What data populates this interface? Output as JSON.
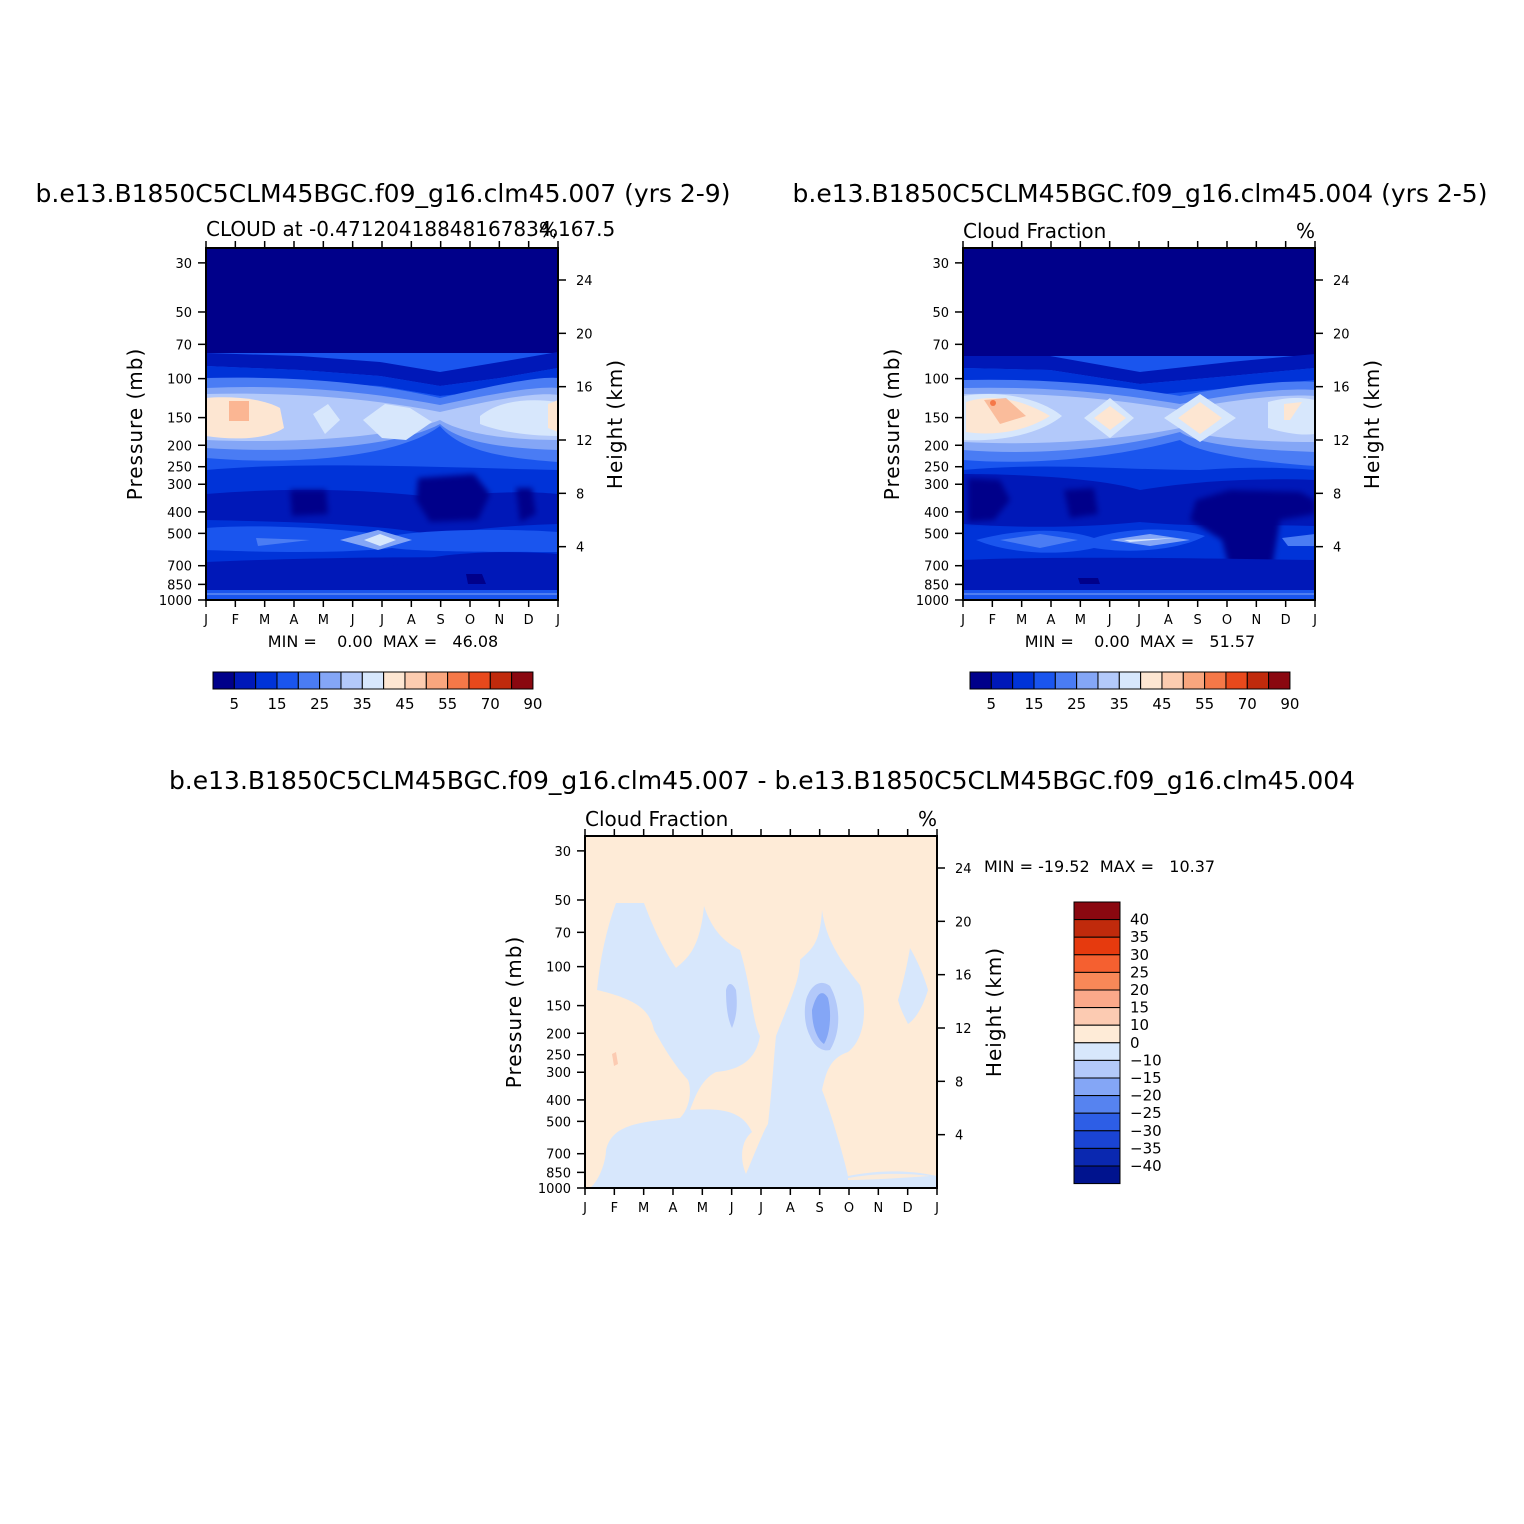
{
  "chart_data": [
    {
      "type": "heatmap",
      "title": "b.e13.B1850C5CLM45BGC.f09_g16.clm45.007 (yrs 2-9)",
      "subtitle_left": "CLOUD at -0.47120418848167834,167.5",
      "units": "%",
      "ylabel": "Pressure (mb)",
      "ylabel_right": "Height (km)",
      "x_ticks": [
        "J",
        "F",
        "M",
        "A",
        "M",
        "J",
        "J",
        "A",
        "S",
        "O",
        "N",
        "D",
        "J"
      ],
      "y_ticks": [
        "30",
        "50",
        "70",
        "100",
        "150",
        "200",
        "250",
        "300",
        "400",
        "500",
        "700",
        "850",
        "1000"
      ],
      "y_ticks_right": [
        "24",
        "20",
        "16",
        "12",
        "8",
        "4"
      ],
      "stats": "MIN =    0.00  MAX =   46.08",
      "colorbar_labels": [
        "5",
        "15",
        "25",
        "35",
        "45",
        "55",
        "70",
        "90"
      ]
    },
    {
      "type": "heatmap",
      "title": "b.e13.B1850C5CLM45BGC.f09_g16.clm45.004 (yrs 2-5)",
      "subtitle_left": "Cloud Fraction",
      "units": "%",
      "ylabel": "Pressure (mb)",
      "ylabel_right": "Height (km)",
      "x_ticks": [
        "J",
        "F",
        "M",
        "A",
        "M",
        "J",
        "J",
        "A",
        "S",
        "O",
        "N",
        "D",
        "J"
      ],
      "y_ticks": [
        "30",
        "50",
        "70",
        "100",
        "150",
        "200",
        "250",
        "300",
        "400",
        "500",
        "700",
        "850",
        "1000"
      ],
      "y_ticks_right": [
        "24",
        "20",
        "16",
        "12",
        "8",
        "4"
      ],
      "stats": "MIN =    0.00  MAX =   51.57",
      "colorbar_labels": [
        "5",
        "15",
        "25",
        "35",
        "45",
        "55",
        "70",
        "90"
      ]
    },
    {
      "type": "heatmap",
      "title": "b.e13.B1850C5CLM45BGC.f09_g16.clm45.007 - b.e13.B1850C5CLM45BGC.f09_g16.clm45.004",
      "subtitle_left": "Cloud Fraction",
      "units": "%",
      "ylabel": "Pressure (mb)",
      "ylabel_right": "Height (km)",
      "x_ticks": [
        "J",
        "F",
        "M",
        "A",
        "M",
        "J",
        "J",
        "A",
        "S",
        "O",
        "N",
        "D",
        "J"
      ],
      "y_ticks": [
        "30",
        "50",
        "70",
        "100",
        "150",
        "200",
        "250",
        "300",
        "400",
        "500",
        "700",
        "850",
        "1000"
      ],
      "y_ticks_right": [
        "24",
        "20",
        "16",
        "12",
        "8",
        "4"
      ],
      "stats": "MIN = -19.52  MAX =   10.37",
      "colorbar_labels": [
        "40",
        "35",
        "30",
        "25",
        "20",
        "15",
        "10",
        "0",
        "-10",
        "-15",
        "-20",
        "-25",
        "-30",
        "-35",
        "-40"
      ]
    }
  ],
  "colors": {
    "seq": [
      "#00008a",
      "#0018b8",
      "#0033d8",
      "#1a55ee",
      "#4a7cf4",
      "#84a6f6",
      "#b3c9fa",
      "#d7e7fc",
      "#fde6d2",
      "#fcccb0",
      "#f9a67e",
      "#f57848",
      "#e8491c",
      "#c02a0c",
      "#8a0810"
    ],
    "div": [
      "#8a0810",
      "#c02a0c",
      "#e63a0e",
      "#f56030",
      "#f88858",
      "#fba98a",
      "#fccbb2",
      "#feebd7",
      "#d7e7fc",
      "#b3c9fa",
      "#84a6f6",
      "#5683f0",
      "#2d5ee6",
      "#1a44d4",
      "#0a28b0",
      "#00138e"
    ]
  }
}
